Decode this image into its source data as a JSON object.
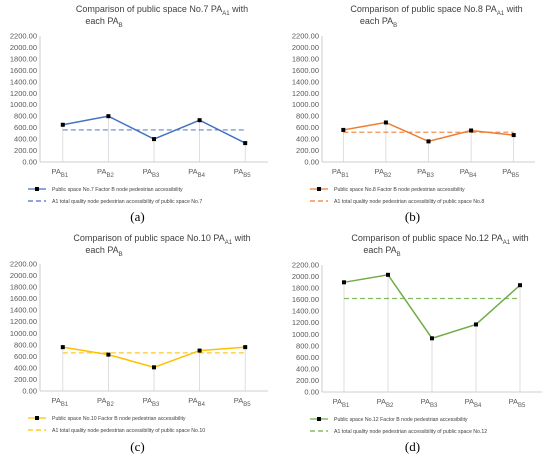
{
  "chart_data": [
    {
      "type": "line",
      "label": "(a)",
      "title": "Comparison of public space No.7 PA",
      "title_sub": "A1",
      "title_line2": "each PA",
      "title_line2_sub": "B",
      "title_mid": " with",
      "categories": [
        "PA",
        "PA",
        "PA",
        "PA",
        "PA"
      ],
      "category_subs": [
        "B1",
        "B2",
        "B3",
        "B4",
        "B5"
      ],
      "yticks": [
        "0.00",
        "200.00",
        "400.00",
        "600.00",
        "800.00",
        "1000.00",
        "1200.00",
        "1400.00",
        "1600.00",
        "1800.00",
        "2000.00",
        "2200.00"
      ],
      "ylim": [
        0,
        2200
      ],
      "color": "#4472C4",
      "series": [
        {
          "name": "Public space No.7 Factor B node pedestrian accessibility",
          "values": [
            650,
            800,
            400,
            730,
            330
          ]
        },
        {
          "name": "A1 total quality node pedestrian accessibility of public space No.7",
          "values": [
            560,
            560,
            560,
            560,
            560
          ]
        }
      ]
    },
    {
      "type": "line",
      "label": "(b)",
      "title": "Comparison of public space No.8 PA",
      "title_sub": "A1",
      "title_line2": "each PA",
      "title_line2_sub": "B",
      "title_mid": " with",
      "categories": [
        "PA",
        "PA",
        "PA",
        "PA",
        "PA"
      ],
      "category_subs": [
        "B1",
        "B2",
        "B3",
        "B4",
        "B5"
      ],
      "yticks": [
        "0.00",
        "200.00",
        "400.00",
        "600.00",
        "800.00",
        "1000.00",
        "1200.00",
        "1400.00",
        "1600.00",
        "1800.00",
        "2000.00",
        "2200.00"
      ],
      "ylim": [
        0,
        2200
      ],
      "color": "#ED7D31",
      "series": [
        {
          "name": "Public space No.8 Factor B node pedestrian accessibility",
          "values": [
            560,
            690,
            360,
            550,
            470
          ]
        },
        {
          "name": "A1 total quality node pedestrian accessibility of public space No.8",
          "values": [
            520,
            520,
            520,
            520,
            520
          ]
        }
      ]
    },
    {
      "type": "line",
      "label": "(c)",
      "title": "Comparison of public space No.10 PA",
      "title_sub": "A1",
      "title_line2": "each PA",
      "title_line2_sub": "B",
      "title_mid": " with",
      "categories": [
        "PA",
        "PA",
        "PA",
        "PA",
        "PA"
      ],
      "category_subs": [
        "B1",
        "B2",
        "B3",
        "B4",
        "B5"
      ],
      "yticks": [
        "0.00",
        "200.00",
        "400.00",
        "600.00",
        "800.00",
        "1000.00",
        "1200.00",
        "1400.00",
        "1600.00",
        "1800.00",
        "2000.00",
        "2200.00"
      ],
      "ylim": [
        0,
        2200
      ],
      "color": "#FFC000",
      "series": [
        {
          "name": "Public space No.10 Factor B node pedestrian accessibility",
          "values": [
            760,
            630,
            410,
            700,
            760
          ]
        },
        {
          "name": "A1 total quality node pedestrian accessibility of public space No.10",
          "values": [
            660,
            660,
            660,
            660,
            660
          ]
        }
      ]
    },
    {
      "type": "line",
      "label": "(d)",
      "title": "Comparison of public space No.12 PA",
      "title_sub": "A1",
      "title_line2": "each PA",
      "title_line2_sub": "B",
      "title_mid": " with",
      "categories": [
        "PA",
        "PA",
        "PA",
        "PA",
        "PA"
      ],
      "category_subs": [
        "B1",
        "B2",
        "B3",
        "B4",
        "B5"
      ],
      "yticks": [
        "0.00",
        "200.00",
        "400.00",
        "600.00",
        "800.00",
        "1000.00",
        "1200.00",
        "1400.00",
        "1600.00",
        "1800.00",
        "2000.00",
        "2200.00"
      ],
      "ylim": [
        0,
        2200
      ],
      "color": "#70AD47",
      "series": [
        {
          "name": "Public space No.12 Factor B node pedestrian accessibility",
          "values": [
            1900,
            2030,
            930,
            1170,
            1850
          ]
        },
        {
          "name": "A1 total quality node pedestrian accessibility of public space No.12",
          "values": [
            1620,
            1620,
            1620,
            1620,
            1620
          ]
        }
      ]
    }
  ]
}
